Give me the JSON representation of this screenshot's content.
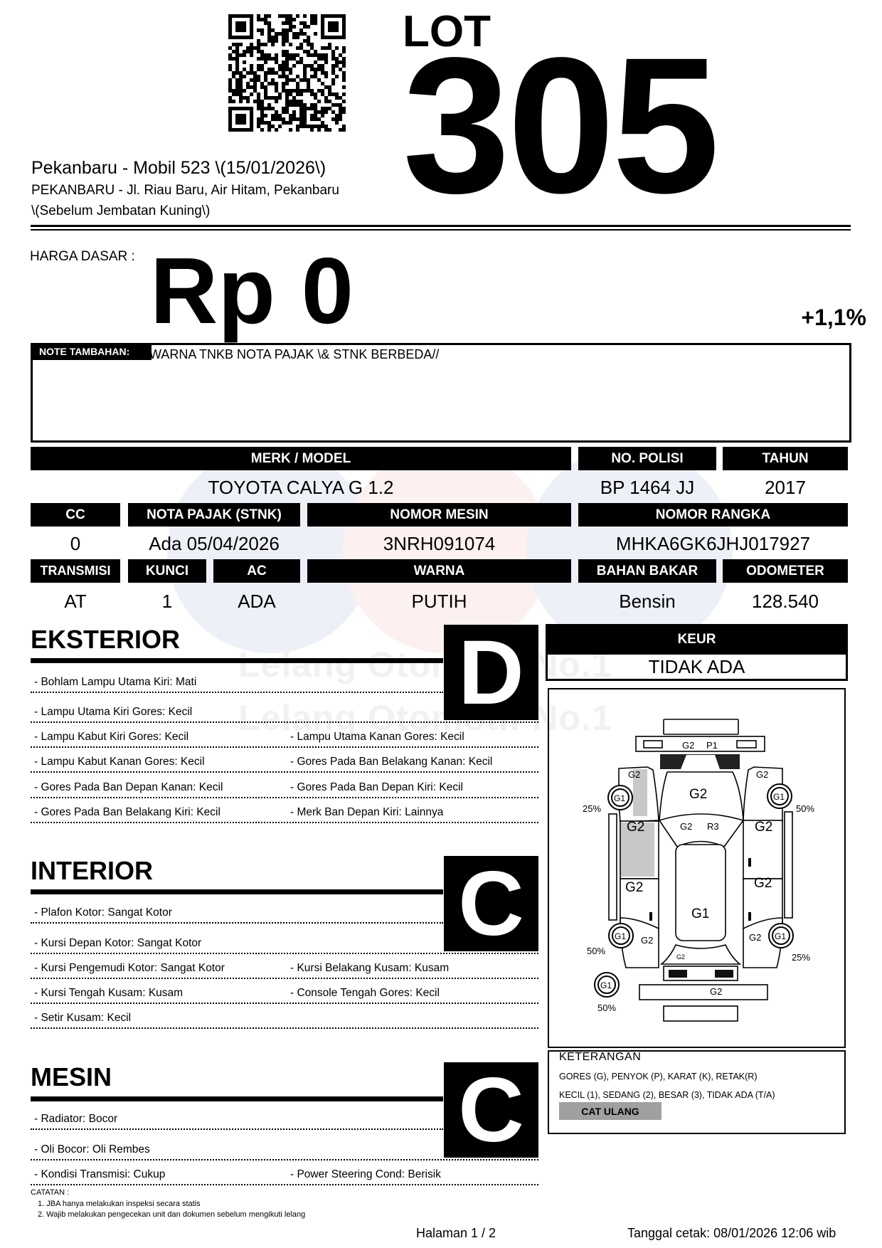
{
  "header": {
    "lot_label": "LOT",
    "lot_number": "305",
    "event_title": "Pekanbaru - Mobil 523 \\(15/01/2026\\)",
    "address_line1": "PEKANBARU - Jl. Riau Baru, Air Hitam, Pekanbaru",
    "address_line2": "\\(Sebelum Jembatan Kuning\\)"
  },
  "price": {
    "label": "HARGA DASAR :",
    "value": "Rp 0",
    "fee": "+1,1%"
  },
  "note": {
    "label": "NOTE TAMBAHAN:",
    "text": "WARNA TNKB NOTA PAJAK \\& STNK BERBEDA//"
  },
  "specs": {
    "merk_model": {
      "label": "MERK / MODEL",
      "value": "TOYOTA CALYA G 1.2"
    },
    "no_polisi": {
      "label": "NO. POLISI",
      "value": "BP 1464 JJ"
    },
    "tahun": {
      "label": "TAHUN",
      "value": "2017"
    },
    "cc": {
      "label": "CC",
      "value": "0"
    },
    "nota_pajak": {
      "label": "NOTA PAJAK (STNK)",
      "value": "Ada 05/04/2026"
    },
    "nomor_mesin": {
      "label": "NOMOR MESIN",
      "value": "3NRH091074"
    },
    "nomor_rangka": {
      "label": "NOMOR RANGKA",
      "value": "MHKA6GK6JHJ017927"
    },
    "transmisi": {
      "label": "TRANSMISI",
      "value": "AT"
    },
    "kunci": {
      "label": "KUNCI",
      "value": "1"
    },
    "ac": {
      "label": "AC",
      "value": "ADA"
    },
    "warna": {
      "label": "WARNA",
      "value": "PUTIH"
    },
    "bahan_bakar": {
      "label": "BAHAN BAKAR",
      "value": "Bensin"
    },
    "odometer": {
      "label": "ODOMETER",
      "value": "128.540"
    }
  },
  "eksterior": {
    "title": "EKSTERIOR",
    "grade": "D",
    "rows": [
      [
        "- Bohlam Lampu Utama Kiri: Mati",
        ""
      ],
      [
        "- Lampu Utama Kiri Gores: Kecil",
        ""
      ],
      [
        "- Lampu Kabut Kiri Gores: Kecil",
        "- Lampu Utama Kanan Gores: Kecil"
      ],
      [
        "- Lampu Kabut Kanan Gores: Kecil",
        "- Gores Pada Ban Belakang Kanan: Kecil"
      ],
      [
        "- Gores Pada Ban Depan Kanan: Kecil",
        "- Gores Pada Ban Depan Kiri: Kecil"
      ],
      [
        "- Gores Pada Ban Belakang Kiri: Kecil",
        "- Merk Ban Depan Kiri: Lainnya"
      ]
    ]
  },
  "interior": {
    "title": "INTERIOR",
    "grade": "C",
    "rows": [
      [
        "- Plafon Kotor: Sangat Kotor",
        ""
      ],
      [
        "- Kursi Depan Kotor: Sangat Kotor",
        ""
      ],
      [
        "- Kursi Pengemudi Kotor: Sangat Kotor",
        "- Kursi Belakang Kusam: Kusam"
      ],
      [
        "- Kursi Tengah Kusam: Kusam",
        "- Console Tengah Gores: Kecil"
      ],
      [
        "- Setir Kusam: Kecil",
        ""
      ]
    ]
  },
  "mesin": {
    "title": "MESIN",
    "grade": "C",
    "rows": [
      [
        "- Radiator: Bocor",
        ""
      ],
      [
        "- Oli Bocor: Oli Rembes",
        ""
      ],
      [
        "- Kondisi Transmisi: Cukup",
        "- Power Steering Cond: Berisik"
      ]
    ]
  },
  "keur": {
    "label": "KEUR",
    "value": "TIDAK ADA"
  },
  "diagram": {
    "front_bumper": [
      "G2",
      "P1"
    ],
    "hood": "G2",
    "fender_front_left": "G2",
    "fender_front_right": "G2",
    "windshield": [
      "G2",
      "R3"
    ],
    "door_front_left": "G2",
    "door_rear_left": "G2",
    "door_front_right": "G2",
    "door_rear_right": "G2",
    "roof": "G1",
    "quarter_rear_left": "G2",
    "quarter_rear_right": "G2",
    "trunk": "G2",
    "rear_bumper": "G2",
    "tire_front_left": {
      "grade": "G1",
      "tread": "25%"
    },
    "tire_front_right": {
      "grade": "G1",
      "tread": "50%"
    },
    "tire_rear_left": {
      "grade": "G1",
      "tread": "50%"
    },
    "tire_rear_right": {
      "grade": "G1",
      "tread": "25%"
    },
    "tire_spare": {
      "grade": "G1",
      "tread": "50%"
    },
    "repaint_color": "#c8c8c8"
  },
  "legend": {
    "title": "KETERANGAN",
    "line1": "GORES (G), PENYOK (P), KARAT (K), RETAK(R)",
    "line2": "KECIL (1), SEDANG (2), BESAR (3), TIDAK ADA (T/A)",
    "repaint": "CAT ULANG"
  },
  "catatan": {
    "title": "CATATAN :",
    "items": [
      "1. JBA hanya melakukan inspeksi secara statis",
      "2. Wajib melakukan pengecekan unit dan dokumen sebelum mengikuti lelang"
    ]
  },
  "footer": {
    "page": "Halaman 1 / 2",
    "printed": "Tanggal cetak: 08/01/2026 12:06 wib"
  },
  "watermark": {
    "letters": [
      "J",
      "B",
      "A"
    ],
    "text": "Lelang Otomotif No.1"
  }
}
